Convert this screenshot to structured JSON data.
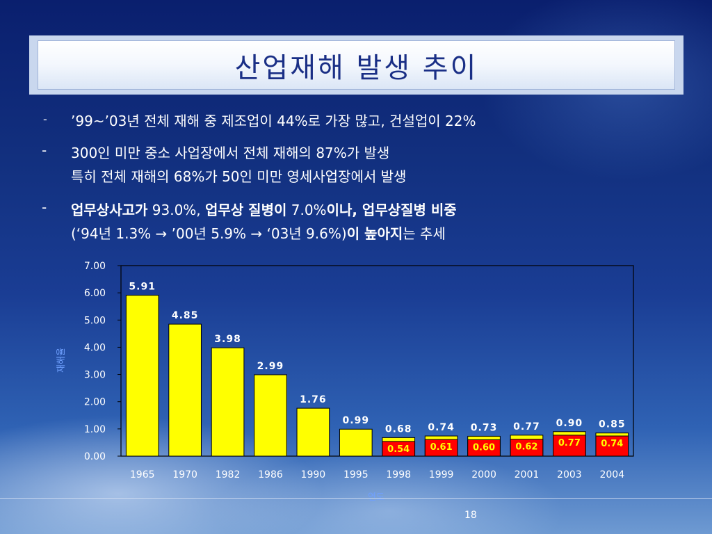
{
  "title": "산업재해 발생 추이",
  "bullets": {
    "b1": {
      "dash": "-",
      "text": "’99~’03년 전체 재해 중 제조업이 44%로 가장 많고,  건설업이 22%"
    },
    "b2": {
      "dash": "-",
      "line1": "300인 미만 중소 사업장에서 전체 재해의 87%가 발생",
      "line2": "특히 전체 재해의 68%가 50인 미만 영세사업장에서 발생"
    },
    "b3": {
      "dash": "-",
      "l1_b1": "업무상사고가",
      "l1_n1": " 93.0%, ",
      "l1_b2": "업무상 질병이",
      "l1_n2": " 7.0%",
      "l1_b3": "이나, 업무상질병 비중",
      "l2_n1": "(‘94년 1.3% → ’00년 5.9% → ‘03년 9.6%)",
      "l2_b1": "이 높아지",
      "l2_n2": "는 추세"
    }
  },
  "chart_data": {
    "type": "bar",
    "xlabel": "연도",
    "ylabel": "재해율",
    "ylim": [
      0,
      7
    ],
    "yticks": [
      "0.00",
      "1.00",
      "2.00",
      "3.00",
      "4.00",
      "5.00",
      "6.00",
      "7.00"
    ],
    "categories": [
      "1965",
      "1970",
      "1982",
      "1986",
      "1990",
      "1995",
      "1998",
      "1999",
      "2000",
      "2001",
      "2003",
      "2004"
    ],
    "series": [
      {
        "values": [
          5.91,
          4.85,
          3.98,
          2.99,
          1.76,
          0.99,
          0.68,
          0.74,
          0.73,
          0.77,
          0.9,
          0.85
        ],
        "labels": [
          "5.91",
          "4.85",
          "3.98",
          "2.99",
          "1.76",
          "0.99",
          "0.68",
          "0.74",
          "0.73",
          "0.77",
          "0.90",
          "0.85"
        ],
        "color": "#ffff00"
      },
      {
        "values": [
          null,
          null,
          null,
          null,
          null,
          null,
          0.54,
          0.61,
          0.6,
          0.62,
          0.77,
          0.74
        ],
        "labels": [
          "",
          "",
          "",
          "",
          "",
          "",
          "0.54",
          "0.61",
          "0.60",
          "0.62",
          "0.77",
          "0.74"
        ],
        "color": "#ff0000"
      }
    ],
    "grid": false
  },
  "page_number": "18"
}
